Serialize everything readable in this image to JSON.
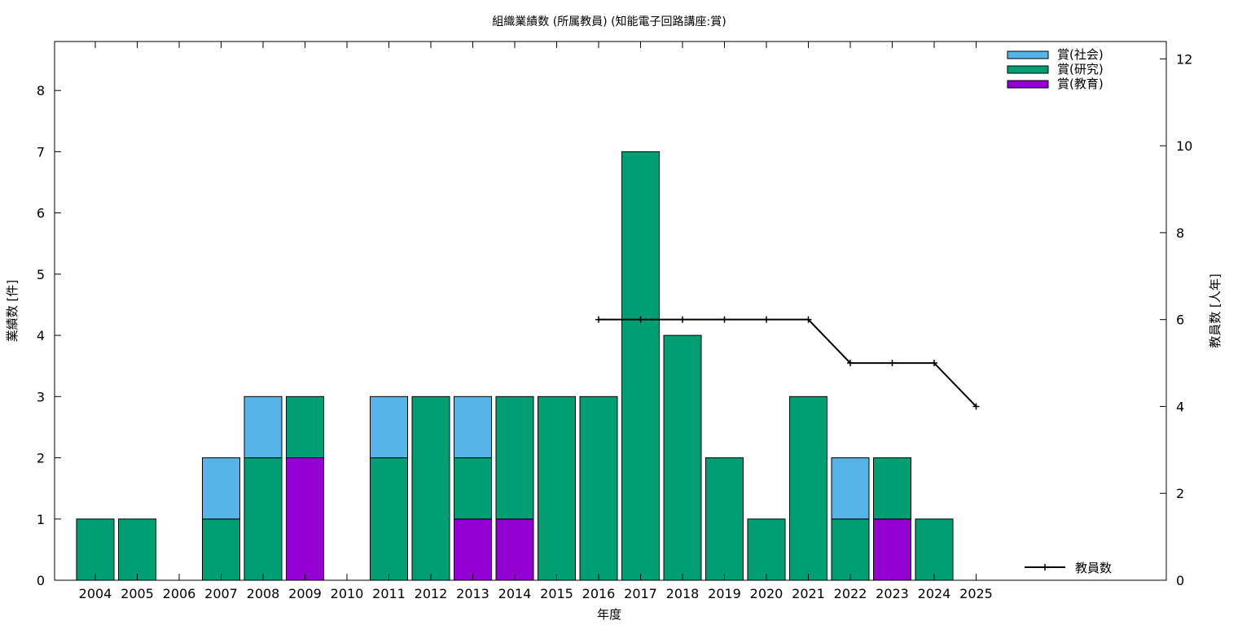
{
  "chart_data": {
    "type": "bar",
    "stacked": true,
    "title": "組織業績数 (所属教員) (知能電子回路講座:賞)",
    "xlabel": "年度",
    "ylabel": "業績数 [件]",
    "y2label": "教員数 [人年]",
    "ylim": [
      0,
      8.8
    ],
    "y2lim": [
      0,
      12.4
    ],
    "yticks": [
      0,
      1,
      2,
      3,
      4,
      5,
      6,
      7,
      8
    ],
    "y2ticks": [
      0,
      2,
      4,
      6,
      8,
      10,
      12
    ],
    "categories": [
      "2004",
      "2005",
      "2006",
      "2007",
      "2008",
      "2009",
      "2010",
      "2011",
      "2012",
      "2013",
      "2014",
      "2015",
      "2016",
      "2017",
      "2018",
      "2019",
      "2020",
      "2021",
      "2022",
      "2023",
      "2024",
      "2025"
    ],
    "series": [
      {
        "name": "賞(教育)",
        "color": "#9400d3",
        "values": [
          0,
          0,
          0,
          0,
          0,
          2,
          0,
          0,
          0,
          1,
          1,
          0,
          0,
          0,
          0,
          0,
          0,
          0,
          0,
          1,
          0,
          0
        ]
      },
      {
        "name": "賞(研究)",
        "color": "#009e73",
        "values": [
          1,
          1,
          0,
          1,
          2,
          1,
          0,
          2,
          3,
          1,
          2,
          3,
          3,
          7,
          4,
          2,
          1,
          3,
          1,
          1,
          1,
          0
        ]
      },
      {
        "name": "賞(社会)",
        "color": "#56b4e9",
        "values": [
          0,
          0,
          0,
          1,
          1,
          0,
          0,
          1,
          0,
          1,
          0,
          0,
          0,
          0,
          0,
          0,
          0,
          0,
          1,
          0,
          0,
          0
        ]
      }
    ],
    "legend_order": [
      "賞(社会)",
      "賞(研究)",
      "賞(教育)"
    ],
    "legend_position": "top-right",
    "line_series": {
      "name": "教員数",
      "axis": "y2",
      "color": "#000000",
      "x": [
        "2016",
        "2017",
        "2018",
        "2019",
        "2020",
        "2021",
        "2022",
        "2023",
        "2024",
        "2025"
      ],
      "values": [
        6,
        6,
        6,
        6,
        6,
        6,
        5,
        5,
        5,
        4
      ],
      "legend_position": "bottom-right"
    }
  }
}
